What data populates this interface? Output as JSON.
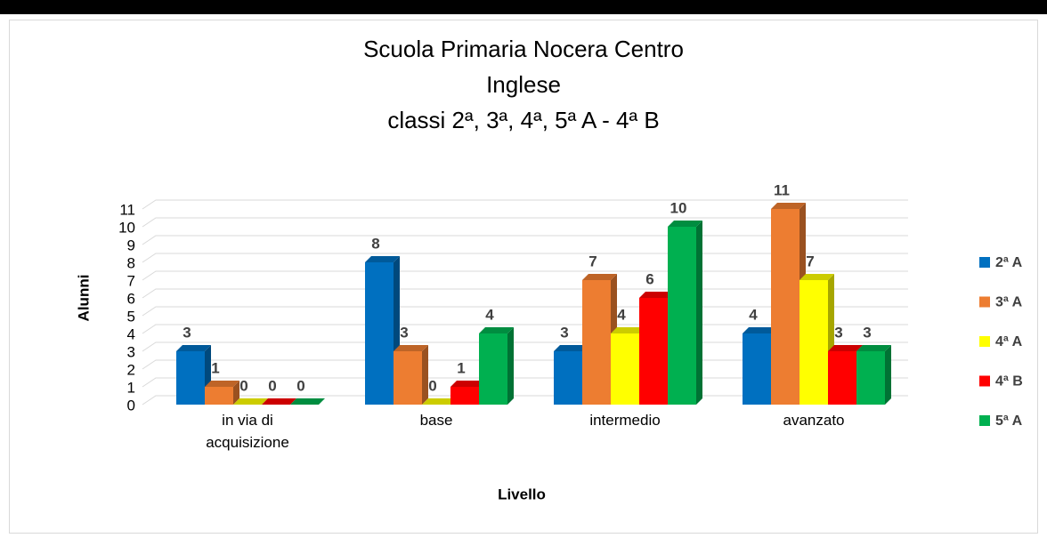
{
  "chart_data": {
    "type": "bar3d",
    "title": [
      "Scuola Primaria Nocera Centro",
      "Inglese",
      "classi 2ª, 3ª, 4ª, 5ª A - 4ª B"
    ],
    "x_label": "Livello",
    "y_label": "Alunni",
    "categories": [
      "in via di acquisizione",
      "base",
      "intermedio",
      "avanzato"
    ],
    "series": [
      {
        "name": "2ª A",
        "color": "#0070c0",
        "values": [
          3,
          8,
          3,
          4
        ]
      },
      {
        "name": "3ª A",
        "color": "#ed7d31",
        "values": [
          1,
          3,
          7,
          11
        ]
      },
      {
        "name": "4ª A",
        "color": "#ffff00",
        "values": [
          0,
          0,
          4,
          7
        ]
      },
      {
        "name": "4ª B",
        "color": "#ff0000",
        "values": [
          0,
          1,
          6,
          3
        ]
      },
      {
        "name": "5ª A",
        "color": "#00b050",
        "values": [
          0,
          4,
          10,
          3
        ]
      }
    ],
    "ylim": [
      0,
      11
    ],
    "yticks": [
      0,
      1,
      2,
      3,
      4,
      5,
      6,
      7,
      8,
      9,
      10,
      11
    ],
    "grid": true,
    "legend": "right"
  }
}
